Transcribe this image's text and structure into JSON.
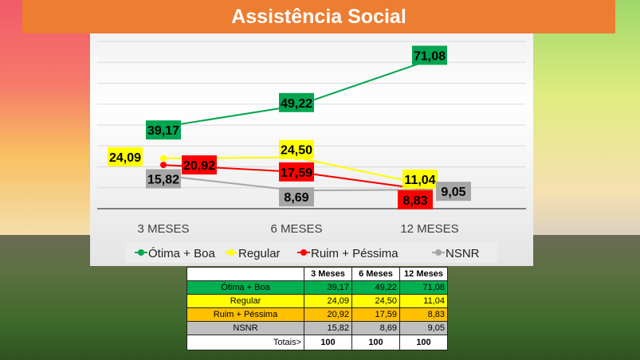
{
  "title": "Assistência Social",
  "chart_data": {
    "type": "line",
    "title": "Assistência Social",
    "categories": [
      "3 MESES",
      "6 MESES",
      "12 MESES"
    ],
    "series": [
      {
        "name": "Ótima + Boa",
        "values": [
          39.17,
          49.22,
          71.08
        ],
        "labels": [
          "39,17",
          "49,22",
          "71,08"
        ],
        "color": "#00a550"
      },
      {
        "name": "Regular",
        "values": [
          24.09,
          24.5,
          11.04
        ],
        "labels": [
          "24,09",
          "24,50",
          "11,04"
        ],
        "color": "#ffff00"
      },
      {
        "name": "Ruim + Péssima",
        "values": [
          20.92,
          17.59,
          8.83
        ],
        "labels": [
          "20,92",
          "17,59",
          "8,83"
        ],
        "color": "#ff0000"
      },
      {
        "name": "NSNR",
        "values": [
          15.82,
          8.69,
          9.05
        ],
        "labels": [
          "15,82",
          "8,69",
          "9,05"
        ],
        "color": "#a6a6a6"
      }
    ],
    "ylim": [
      0,
      80
    ],
    "grid": true,
    "legend": "bottom"
  },
  "table": {
    "headers": [
      "",
      "3 Meses",
      "6 Meses",
      "12 Meses"
    ],
    "rows": [
      {
        "label": "Ótima + Boa",
        "values": [
          "39,17",
          "49,22",
          "71,08"
        ],
        "color": "#00b050"
      },
      {
        "label": "Regular",
        "values": [
          "24,09",
          "24,50",
          "11,04"
        ],
        "color": "#ffff00"
      },
      {
        "label": "Ruim + Péssima",
        "values": [
          "20,92",
          "17,59",
          "8,83"
        ],
        "color": "#ffc000"
      },
      {
        "label": "NSNR",
        "values": [
          "15,82",
          "8,69",
          "9,05"
        ],
        "color": "#bfbfbf"
      }
    ],
    "totals_label": "Totais>",
    "totals": [
      "100",
      "100",
      "100"
    ]
  }
}
